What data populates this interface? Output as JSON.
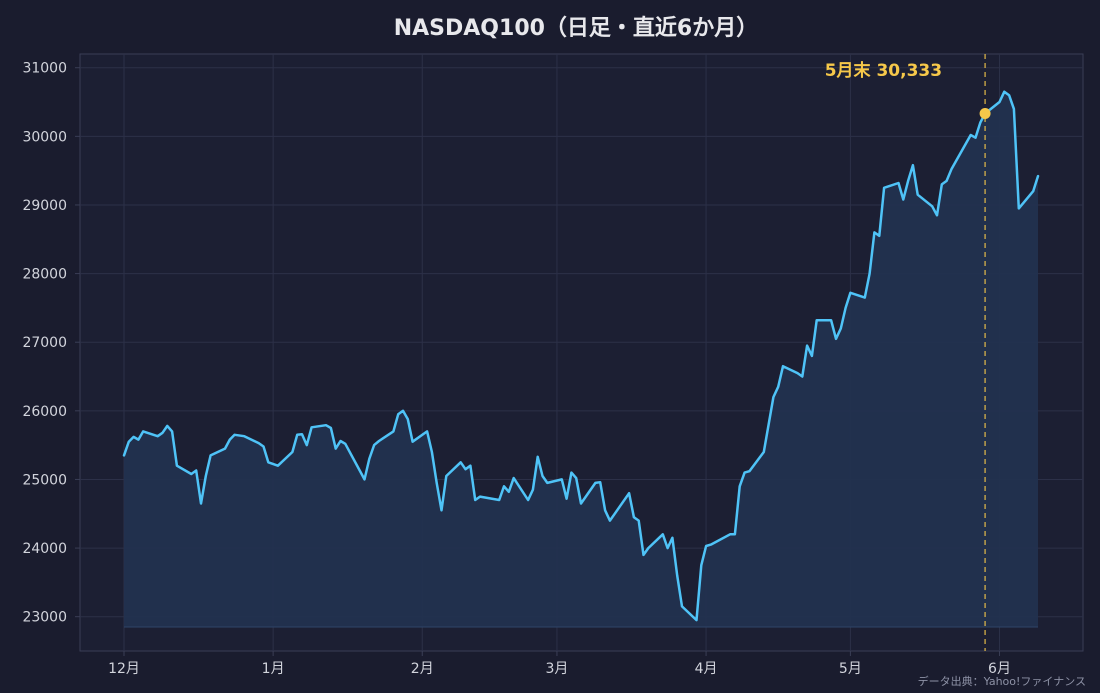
{
  "chart_data": {
    "type": "line",
    "title": "NASDAQ100（日足・直近6か月）",
    "xlabel": "",
    "ylabel": "",
    "ylim": [
      22500,
      31200
    ],
    "y_ticks": [
      23000,
      24000,
      25000,
      26000,
      27000,
      28000,
      29000,
      30000,
      31000
    ],
    "x_ticks": [
      {
        "label": "12月",
        "date": "2025-12-01"
      },
      {
        "label": "1月",
        "date": "2026-01-01"
      },
      {
        "label": "2月",
        "date": "2026-02-01"
      },
      {
        "label": "3月",
        "date": "2026-03-01"
      },
      {
        "label": "4月",
        "date": "2026-04-01"
      },
      {
        "label": "5月",
        "date": "2026-05-01"
      },
      {
        "label": "6月",
        "date": "2026-06-01"
      }
    ],
    "grid": true,
    "colors": {
      "background": "#1a1c2e",
      "plot_background": "#1c1f33",
      "grid": "#2c3048",
      "axis": "#3a3e56",
      "line": "#4fc3f7",
      "fill": "#22324f",
      "annotation": "#f6c84a"
    },
    "series": [
      {
        "points": [
          [
            "2025-12-01",
            25350
          ],
          [
            "2025-12-02",
            25550
          ],
          [
            "2025-12-03",
            25620
          ],
          [
            "2025-12-04",
            25580
          ],
          [
            "2025-12-05",
            25700
          ],
          [
            "2025-12-08",
            25630
          ],
          [
            "2025-12-09",
            25680
          ],
          [
            "2025-12-10",
            25780
          ],
          [
            "2025-12-11",
            25700
          ],
          [
            "2025-12-12",
            25200
          ],
          [
            "2025-12-15",
            25080
          ],
          [
            "2025-12-16",
            25130
          ],
          [
            "2025-12-17",
            24650
          ],
          [
            "2025-12-18",
            25050
          ],
          [
            "2025-12-19",
            25350
          ],
          [
            "2025-12-22",
            25450
          ],
          [
            "2025-12-23",
            25580
          ],
          [
            "2025-12-24",
            25650
          ],
          [
            "2025-12-26",
            25630
          ],
          [
            "2025-12-29",
            25530
          ],
          [
            "2025-12-30",
            25480
          ],
          [
            "2025-12-31",
            25250
          ],
          [
            "2026-01-02",
            25200
          ],
          [
            "2026-01-05",
            25400
          ],
          [
            "2026-01-06",
            25650
          ],
          [
            "2026-01-07",
            25660
          ],
          [
            "2026-01-08",
            25500
          ],
          [
            "2026-01-09",
            25760
          ],
          [
            "2026-01-12",
            25790
          ],
          [
            "2026-01-13",
            25750
          ],
          [
            "2026-01-14",
            25450
          ],
          [
            "2026-01-15",
            25560
          ],
          [
            "2026-01-16",
            25520
          ],
          [
            "2026-01-20",
            25000
          ],
          [
            "2026-01-21",
            25300
          ],
          [
            "2026-01-22",
            25500
          ],
          [
            "2026-01-23",
            25560
          ],
          [
            "2026-01-26",
            25700
          ],
          [
            "2026-01-27",
            25950
          ],
          [
            "2026-01-28",
            26000
          ],
          [
            "2026-01-29",
            25880
          ],
          [
            "2026-01-30",
            25550
          ],
          [
            "2026-02-02",
            25700
          ],
          [
            "2026-02-03",
            25400
          ],
          [
            "2026-02-04",
            24950
          ],
          [
            "2026-02-05",
            24550
          ],
          [
            "2026-02-06",
            25050
          ],
          [
            "2026-02-09",
            25250
          ],
          [
            "2026-02-10",
            25150
          ],
          [
            "2026-02-11",
            25200
          ],
          [
            "2026-02-12",
            24700
          ],
          [
            "2026-02-13",
            24750
          ],
          [
            "2026-02-17",
            24700
          ],
          [
            "2026-02-18",
            24900
          ],
          [
            "2026-02-19",
            24820
          ],
          [
            "2026-02-20",
            25020
          ],
          [
            "2026-02-23",
            24700
          ],
          [
            "2026-02-24",
            24850
          ],
          [
            "2026-02-25",
            25330
          ],
          [
            "2026-02-26",
            25050
          ],
          [
            "2026-02-27",
            24950
          ],
          [
            "2026-03-02",
            25000
          ],
          [
            "2026-03-03",
            24720
          ],
          [
            "2026-03-04",
            25100
          ],
          [
            "2026-03-05",
            25020
          ],
          [
            "2026-03-06",
            24650
          ],
          [
            "2026-03-09",
            24950
          ],
          [
            "2026-03-10",
            24960
          ],
          [
            "2026-03-11",
            24550
          ],
          [
            "2026-03-12",
            24400
          ],
          [
            "2026-03-13",
            24500
          ],
          [
            "2026-03-16",
            24800
          ],
          [
            "2026-03-17",
            24450
          ],
          [
            "2026-03-18",
            24400
          ],
          [
            "2026-03-19",
            23900
          ],
          [
            "2026-03-20",
            24000
          ],
          [
            "2026-03-23",
            24200
          ],
          [
            "2026-03-24",
            24000
          ],
          [
            "2026-03-25",
            24150
          ],
          [
            "2026-03-26",
            23600
          ],
          [
            "2026-03-27",
            23150
          ],
          [
            "2026-03-30",
            22950
          ],
          [
            "2026-03-31",
            23750
          ],
          [
            "2026-04-01",
            24030
          ],
          [
            "2026-04-02",
            24050
          ],
          [
            "2026-04-06",
            24200
          ],
          [
            "2026-04-07",
            24200
          ],
          [
            "2026-04-08",
            24900
          ],
          [
            "2026-04-09",
            25100
          ],
          [
            "2026-04-10",
            25120
          ],
          [
            "2026-04-13",
            25400
          ],
          [
            "2026-04-14",
            25800
          ],
          [
            "2026-04-15",
            26200
          ],
          [
            "2026-04-16",
            26350
          ],
          [
            "2026-04-17",
            26650
          ],
          [
            "2026-04-20",
            26550
          ],
          [
            "2026-04-21",
            26500
          ],
          [
            "2026-04-22",
            26950
          ],
          [
            "2026-04-23",
            26800
          ],
          [
            "2026-04-24",
            27320
          ],
          [
            "2026-04-27",
            27320
          ],
          [
            "2026-04-28",
            27050
          ],
          [
            "2026-04-29",
            27200
          ],
          [
            "2026-04-30",
            27500
          ],
          [
            "2026-05-01",
            27720
          ],
          [
            "2026-05-04",
            27650
          ],
          [
            "2026-05-05",
            28000
          ],
          [
            "2026-05-06",
            28600
          ],
          [
            "2026-05-07",
            28550
          ],
          [
            "2026-05-08",
            29250
          ],
          [
            "2026-05-11",
            29320
          ],
          [
            "2026-05-12",
            29080
          ],
          [
            "2026-05-13",
            29350
          ],
          [
            "2026-05-14",
            29580
          ],
          [
            "2026-05-15",
            29150
          ],
          [
            "2026-05-18",
            28980
          ],
          [
            "2026-05-19",
            28850
          ],
          [
            "2026-05-20",
            29300
          ],
          [
            "2026-05-21",
            29350
          ],
          [
            "2026-05-22",
            29520
          ],
          [
            "2026-05-26",
            30020
          ],
          [
            "2026-05-27",
            29980
          ],
          [
            "2026-05-28",
            30200
          ],
          [
            "2026-05-29",
            30333
          ],
          [
            "2026-06-01",
            30500
          ],
          [
            "2026-06-02",
            30650
          ],
          [
            "2026-06-03",
            30600
          ],
          [
            "2026-06-04",
            30400
          ],
          [
            "2026-06-05",
            28950
          ],
          [
            "2026-06-08",
            29200
          ],
          [
            "2026-06-09",
            29420
          ]
        ]
      }
    ],
    "annotation": {
      "label": "5月末 30,333",
      "date": "2026-05-29",
      "value": 30333
    },
    "source": "データ出典：Yahoo!ファイナンス"
  }
}
